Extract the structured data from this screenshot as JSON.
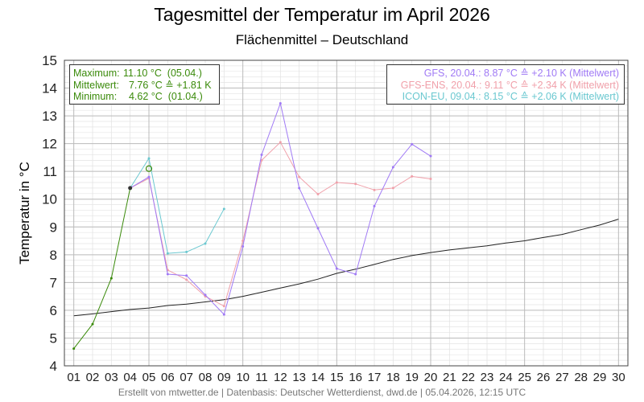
{
  "title": "Tagesmittel der Temperatur im April 2026",
  "subtitle": "Flächenmittel – Deutschland",
  "footer": "Erstellt von mtwetter.de | Datenbasis: Deutscher Wetterdienst, dwd.de | 05.04.2026, 12:15 UTC",
  "stats": {
    "max_label": "Maximum:",
    "max_value": "11.10 °C  (05.04.)",
    "mean_label": "Mittelwert:",
    "mean_value": "  7.76 °C ≙ +1.81 K",
    "min_label": "Minimum:",
    "min_value": "  4.62 °C  (01.04.)"
  },
  "colors": {
    "observed": "#3a8a0a",
    "gfs": "#a07af5",
    "gfs_ens": "#f0a0aa",
    "icon_eu": "#6ac8d0",
    "climate": "#222222",
    "grid_major": "#bbbbbb",
    "grid_minor": "#e4e4e4"
  },
  "chart_data": {
    "type": "line",
    "title": "Tagesmittel der Temperatur im April 2026",
    "subtitle": "Flächenmittel – Deutschland",
    "xlabel": "",
    "ylabel": "Temperatur in °C",
    "ylim": [
      4,
      15
    ],
    "yticks": [
      4,
      5,
      6,
      7,
      8,
      9,
      10,
      11,
      12,
      13,
      14,
      15
    ],
    "xlim": [
      0.5,
      30.5
    ],
    "xtick_labels": [
      "01",
      "02",
      "03",
      "04",
      "05",
      "06",
      "07",
      "08",
      "09",
      "10",
      "11",
      "12",
      "13",
      "14",
      "15",
      "16",
      "17",
      "18",
      "19",
      "20",
      "21",
      "22",
      "23",
      "24",
      "25",
      "26",
      "27",
      "28",
      "29",
      "30"
    ],
    "grid": true,
    "legend_position": "top-right",
    "series": [
      {
        "key": "observed",
        "x": [
          1,
          2,
          3,
          4
        ],
        "values": [
          4.62,
          5.5,
          7.15,
          10.4
        ]
      },
      {
        "name": "GFS, 20.04.: 8.87 °C ≙ +2.10 K (Mittelwert)",
        "key": "gfs",
        "x": [
          4,
          5,
          6,
          7,
          8,
          9,
          10,
          11,
          12,
          13,
          14,
          15,
          16,
          17,
          18,
          19,
          20
        ],
        "values": [
          10.4,
          10.8,
          7.3,
          7.25,
          6.55,
          5.85,
          8.3,
          11.6,
          13.45,
          10.4,
          8.95,
          7.5,
          7.3,
          9.75,
          11.15,
          11.98,
          11.55
        ]
      },
      {
        "name": "GFS-ENS, 20.04.: 9.11 °C ≙ +2.34 K (Mittelwert)",
        "key": "gfs_ens",
        "x": [
          4,
          5,
          6,
          7,
          8,
          9,
          10,
          11,
          12,
          13,
          14,
          15,
          16,
          17,
          18,
          19,
          20
        ],
        "values": [
          10.4,
          10.75,
          7.45,
          7.1,
          6.5,
          6.15,
          8.5,
          11.4,
          12.05,
          10.8,
          10.18,
          10.6,
          10.55,
          10.33,
          10.4,
          10.82,
          10.73
        ]
      },
      {
        "name": "ICON-EU, 09.04.: 8.15 °C ≙ +2.06 K (Mittelwert)",
        "key": "icon_eu",
        "x": [
          4,
          5,
          6,
          7,
          8,
          9
        ],
        "values": [
          10.4,
          11.47,
          8.05,
          8.1,
          8.4,
          9.65
        ]
      },
      {
        "key": "climate",
        "x": [
          1,
          2,
          3,
          4,
          5,
          6,
          7,
          8,
          9,
          10,
          11,
          12,
          13,
          14,
          15,
          16,
          17,
          18,
          19,
          20,
          21,
          22,
          23,
          24,
          25,
          26,
          27,
          28,
          29,
          30
        ],
        "values": [
          5.8,
          5.87,
          5.95,
          6.03,
          6.08,
          6.17,
          6.22,
          6.3,
          6.38,
          6.5,
          6.65,
          6.8,
          6.95,
          7.12,
          7.33,
          7.48,
          7.65,
          7.83,
          7.97,
          8.08,
          8.17,
          8.25,
          8.32,
          8.42,
          8.5,
          8.62,
          8.73,
          8.9,
          9.07,
          9.28
        ]
      }
    ],
    "markers": [
      {
        "type": "max",
        "x": 5,
        "value": 11.1
      }
    ]
  }
}
